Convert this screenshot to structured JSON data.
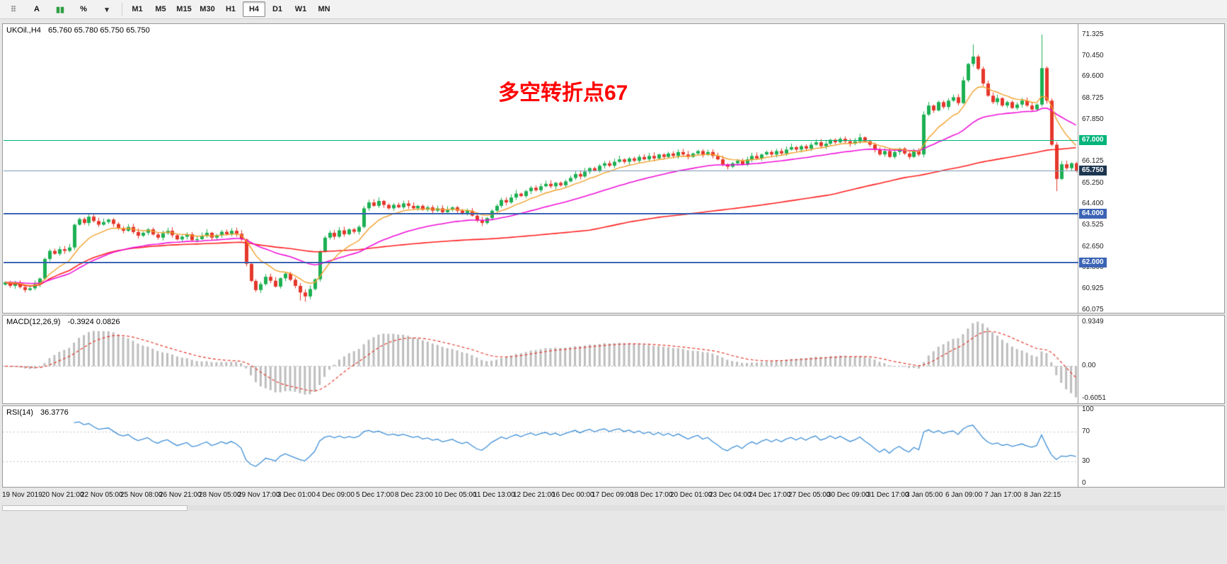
{
  "toolbar": {
    "tools": [
      {
        "name": "drag-handle-icon",
        "glyph": "⠿",
        "color": "#8a8a8a",
        "interactable": "false"
      },
      {
        "name": "cursor-tool-button",
        "glyph": "A",
        "color": "#111111",
        "interactable": "true"
      },
      {
        "name": "chart-bars-tool-button",
        "glyph": "▮▮",
        "color": "#2f9e44",
        "interactable": "true"
      },
      {
        "name": "percent-tool-button",
        "glyph": "%",
        "color": "#111111",
        "interactable": "true"
      },
      {
        "name": "dropdown-chevron-icon",
        "glyph": "▾",
        "color": "#333333",
        "interactable": "true"
      }
    ],
    "timeframes": [
      "M1",
      "M5",
      "M15",
      "M30",
      "H1",
      "H4",
      "D1",
      "W1",
      "MN"
    ],
    "active_timeframe": "H4"
  },
  "main_chart": {
    "title_symbol": "UKOil.,H4",
    "title_ohlc": "65.760 65.780 65.750 65.750",
    "annotation": {
      "text": "多空转折点67",
      "color": "#ff0000"
    },
    "price_range": {
      "min": 59.95,
      "max": 71.75
    },
    "price_axis_labels": [
      "71.325",
      "70.450",
      "69.600",
      "68.725",
      "67.850",
      "66.125",
      "65.250",
      "64.400",
      "63.525",
      "62.650",
      "61.800",
      "60.925",
      "60.075"
    ],
    "hlines": [
      {
        "value": 67.0,
        "label": "67.000",
        "color": "#00b47a",
        "thickness": 1
      },
      {
        "value": 64.0,
        "label": "64.000",
        "color": "#3c64b4",
        "thickness": 2
      },
      {
        "value": 62.0,
        "label": "62.000",
        "color": "#3c64b4",
        "thickness": 2
      }
    ],
    "current_price": {
      "value": 65.75,
      "label": "65.750",
      "line_color": "#7f9db9",
      "badge_color": "#1d3650"
    },
    "colors": {
      "up": "#1cb053",
      "down": "#e5372b",
      "ma_fast": "#f0a02c",
      "ma_mid": "#ee10d8",
      "ma_slow": "#ff2020"
    }
  },
  "chart_data": {
    "type": "candlestick",
    "symbol": "UKOil",
    "timeframe": "H4",
    "ohlc_display": {
      "open": "65.760",
      "high": "65.780",
      "low": "65.750",
      "close": "65.750"
    },
    "first_open": 61.1,
    "closes": [
      61.2,
      61.05,
      61.18,
      61.0,
      60.88,
      60.95,
      61.12,
      61.35,
      62.15,
      62.48,
      62.36,
      62.55,
      62.48,
      62.62,
      63.55,
      63.78,
      63.62,
      63.88,
      63.7,
      63.55,
      63.66,
      63.76,
      63.58,
      63.4,
      63.3,
      63.46,
      63.25,
      63.1,
      63.22,
      63.36,
      63.15,
      63.02,
      63.2,
      63.3,
      63.12,
      62.95,
      63.06,
      63.16,
      62.92,
      62.96,
      63.1,
      63.22,
      63.02,
      63.12,
      63.26,
      63.16,
      63.3,
      63.18,
      62.95,
      61.95,
      61.25,
      60.88,
      61.12,
      61.42,
      61.26,
      61.02,
      61.36,
      61.55,
      61.3,
      61.05,
      60.78,
      60.62,
      60.92,
      61.32,
      62.45,
      63.02,
      63.22,
      63.06,
      63.32,
      63.16,
      63.36,
      63.26,
      63.46,
      64.22,
      64.46,
      64.32,
      64.52,
      64.36,
      64.22,
      64.36,
      64.26,
      64.42,
      64.32,
      64.22,
      64.32,
      64.16,
      64.26,
      64.12,
      64.22,
      64.06,
      64.16,
      64.26,
      64.12,
      64.02,
      64.12,
      63.92,
      63.72,
      63.62,
      63.82,
      64.12,
      64.32,
      64.56,
      64.46,
      64.66,
      64.82,
      64.72,
      64.92,
      65.06,
      64.96,
      65.12,
      65.22,
      65.12,
      65.26,
      65.16,
      65.32,
      65.46,
      65.62,
      65.52,
      65.72,
      65.86,
      65.76,
      65.96,
      66.06,
      65.96,
      66.12,
      66.22,
      66.12,
      66.26,
      66.16,
      66.32,
      66.22,
      66.36,
      66.26,
      66.42,
      66.32,
      66.46,
      66.36,
      66.52,
      66.42,
      66.32,
      66.46,
      66.56,
      66.42,
      66.52,
      66.36,
      66.22,
      66.02,
      65.92,
      66.06,
      66.16,
      66.02,
      66.22,
      66.36,
      66.26,
      66.42,
      66.52,
      66.42,
      66.56,
      66.46,
      66.62,
      66.72,
      66.62,
      66.76,
      66.66,
      66.82,
      66.92,
      66.76,
      66.86,
      67.02,
      66.92,
      67.06,
      66.96,
      66.86,
      66.96,
      67.12,
      66.96,
      66.82,
      66.62,
      66.42,
      66.56,
      66.32,
      66.52,
      66.66,
      66.46,
      66.32,
      66.56,
      66.42,
      68.05,
      68.42,
      68.22,
      68.56,
      68.36,
      68.62,
      68.76,
      68.52,
      69.45,
      70.12,
      70.42,
      69.92,
      69.32,
      68.82,
      68.56,
      68.72,
      68.42,
      68.56,
      68.32,
      68.46,
      68.62,
      68.42,
      68.26,
      68.46,
      69.95,
      68.62,
      66.82,
      65.42,
      66.02,
      65.86,
      66.06,
      65.75
    ],
    "wick_overrides": {
      "60": {
        "low": 60.45
      },
      "61": {
        "low": 60.4
      },
      "197": {
        "high": 70.92
      },
      "211": {
        "high": 71.32
      },
      "214": {
        "low": 64.92
      }
    },
    "moving_averages": [
      {
        "name": "ma-fast",
        "period": 10,
        "method": "ema"
      },
      {
        "name": "ma-mid",
        "period": 34,
        "method": "ema"
      },
      {
        "name": "ma-slow",
        "period": 120,
        "method": "sma"
      }
    ]
  },
  "macd_panel": {
    "label": "MACD(12,26,9)",
    "values_text": "-0.3924 0.0826",
    "axis_labels": {
      "top": "0.9349",
      "zero": "0.00",
      "bottom": "-0.6051"
    },
    "params": {
      "fast": 12,
      "slow": 26,
      "signal": 9
    },
    "colors": {
      "histogram": "#bdbdbd",
      "signal": "#e23a2e",
      "zero_line": "#b5b5b5"
    }
  },
  "rsi_panel": {
    "label": "RSI(14)",
    "value_text": "36.3776",
    "period": 14,
    "axis_labels": [
      {
        "text": "100",
        "value": 100
      },
      {
        "text": "70",
        "value": 70
      },
      {
        "text": "30",
        "value": 30
      },
      {
        "text": "0",
        "value": 0
      }
    ],
    "levels": [
      70,
      30
    ],
    "colors": {
      "line": "#3f8fd6",
      "level_line": "#bfbfbf"
    }
  },
  "time_axis": {
    "labels": [
      "19 Nov 2019",
      "20 Nov 21:00",
      "22 Nov 05:00",
      "25 Nov 08:00",
      "26 Nov 21:00",
      "28 Nov 05:00",
      "29 Nov 17:00",
      "3 Dec 01:00",
      "4 Dec 09:00",
      "5 Dec 17:00",
      "8 Dec 23:00",
      "10 Dec 05:00",
      "11 Dec 13:00",
      "12 Dec 21:00",
      "16 Dec 00:00",
      "17 Dec 09:00",
      "18 Dec 17:00",
      "20 Dec 01:00",
      "23 Dec 04:00",
      "24 Dec 17:00",
      "27 Dec 05:00",
      "30 Dec 09:00",
      "31 Dec 17:00",
      "3 Jan 05:00",
      "6 Jan 09:00",
      "7 Jan 17:00",
      "8 Jan 22:15"
    ],
    "candles_per_label": 8
  }
}
